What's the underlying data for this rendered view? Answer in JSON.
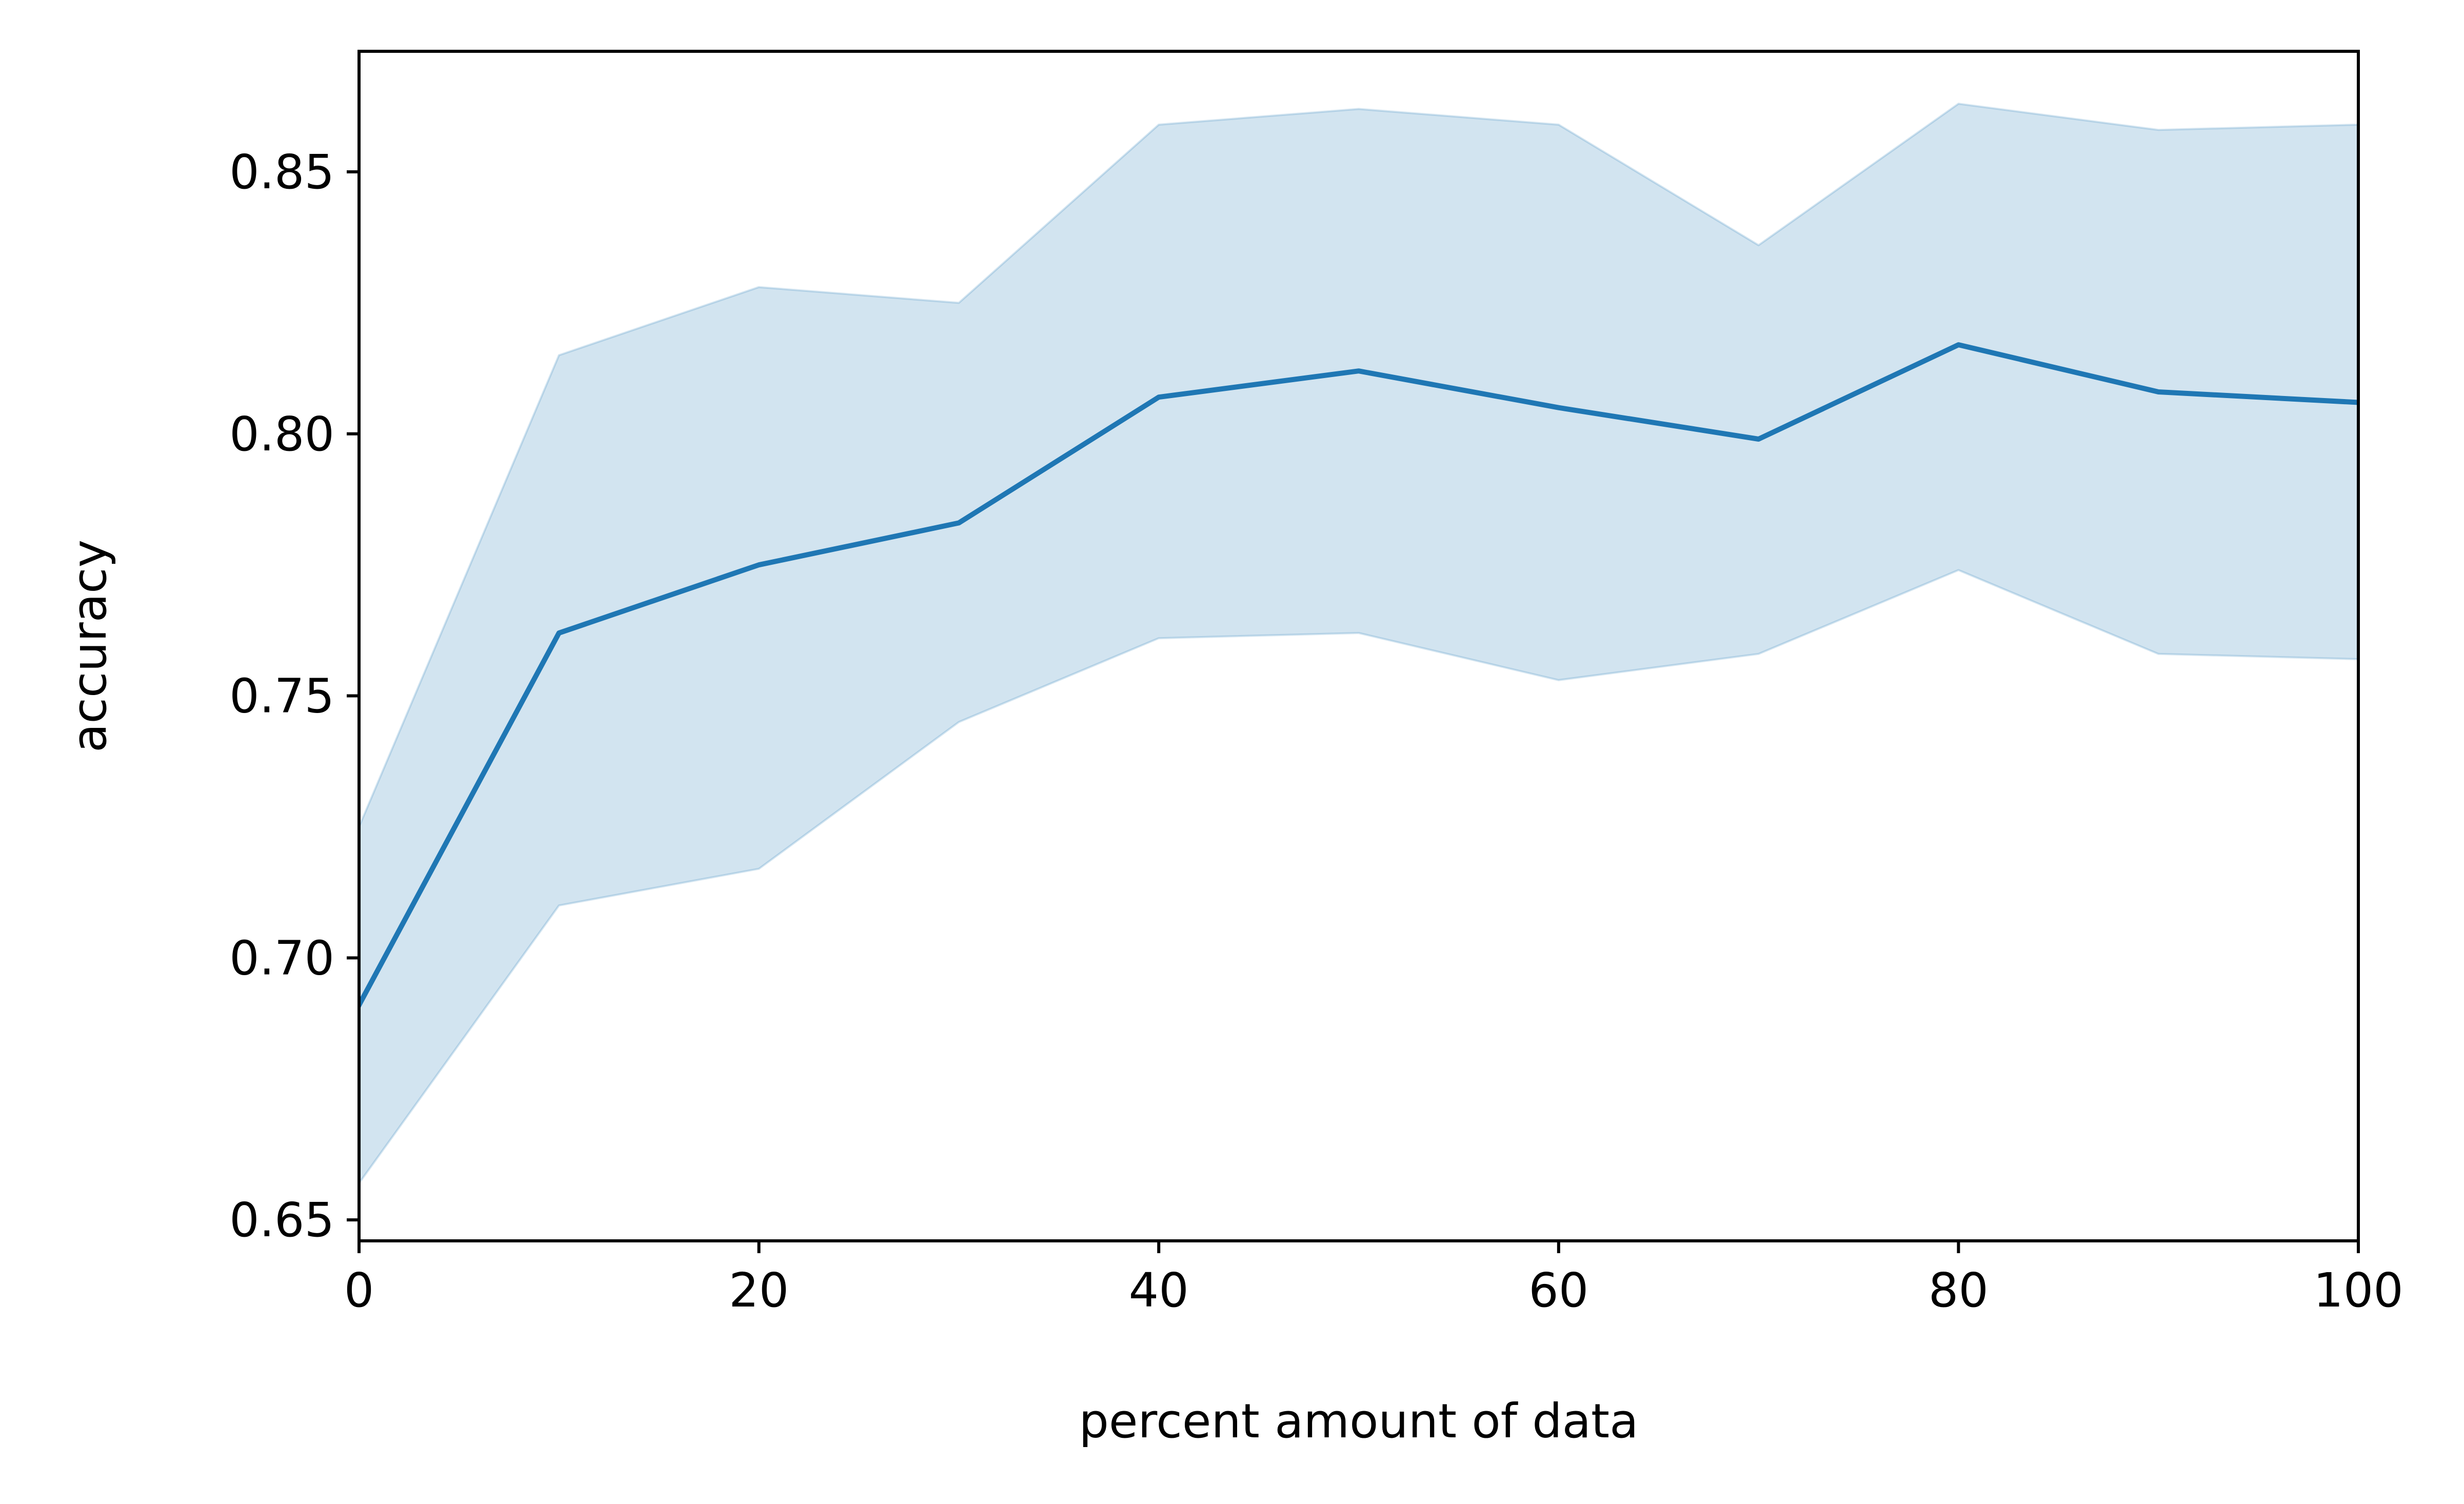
{
  "chart_data": {
    "type": "line",
    "title": "",
    "xlabel": "percent amount of data",
    "ylabel": "accuracy",
    "xlim": [
      0,
      100
    ],
    "ylim": [
      0.646,
      0.873
    ],
    "xticks": [
      0,
      20,
      40,
      60,
      80,
      100
    ],
    "xtick_labels": [
      "0",
      "20",
      "40",
      "60",
      "80",
      "100"
    ],
    "yticks": [
      0.65,
      0.7,
      0.75,
      0.8,
      0.85
    ],
    "ytick_labels": [
      "0.65",
      "0.70",
      "0.75",
      "0.80",
      "0.85"
    ],
    "grid": false,
    "legend": "none",
    "series": [
      {
        "x": [
          0,
          10,
          20,
          30,
          40,
          50,
          60,
          70,
          80,
          90,
          100
        ],
        "values": [
          0.691,
          0.762,
          0.775,
          0.783,
          0.807,
          0.812,
          0.805,
          0.799,
          0.817,
          0.808,
          0.806
        ],
        "lower": [
          0.657,
          0.71,
          0.717,
          0.745,
          0.761,
          0.762,
          0.753,
          0.758,
          0.774,
          0.758,
          0.757
        ],
        "upper": [
          0.725,
          0.815,
          0.828,
          0.825,
          0.859,
          0.862,
          0.859,
          0.836,
          0.863,
          0.858,
          0.859
        ],
        "color": "#1f77b4",
        "band_color": "#1f77b4",
        "band_opacity": 0.2
      }
    ]
  }
}
